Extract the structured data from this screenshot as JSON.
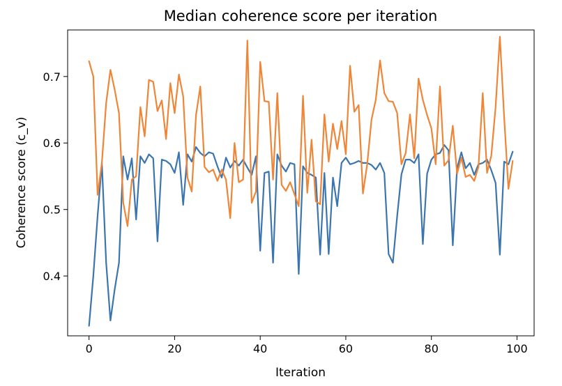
{
  "chart_data": {
    "type": "line",
    "title": "Median coherence score per iteration",
    "xlabel": "Iteration",
    "ylabel": "Coherence score (c_v)",
    "xlim": [
      -5,
      104
    ],
    "ylim": [
      0.31,
      0.77
    ],
    "xticks": [
      0,
      20,
      40,
      60,
      80,
      100
    ],
    "xtick_labels": [
      "0",
      "20",
      "40",
      "60",
      "80",
      "100"
    ],
    "yticks": [
      0.4,
      0.5,
      0.6,
      0.7
    ],
    "ytick_labels": [
      "0.4",
      "0.5",
      "0.6",
      "0.7"
    ],
    "grid": false,
    "legend": false,
    "x": [
      0,
      1,
      2,
      3,
      4,
      5,
      6,
      7,
      8,
      9,
      10,
      11,
      12,
      13,
      14,
      15,
      16,
      17,
      18,
      19,
      20,
      21,
      22,
      23,
      24,
      25,
      26,
      27,
      28,
      29,
      30,
      31,
      32,
      33,
      34,
      35,
      36,
      37,
      38,
      39,
      40,
      41,
      42,
      43,
      44,
      45,
      46,
      47,
      48,
      49,
      50,
      51,
      52,
      53,
      54,
      55,
      56,
      57,
      58,
      59,
      60,
      61,
      62,
      63,
      64,
      65,
      66,
      67,
      68,
      69,
      70,
      71,
      72,
      73,
      74,
      75,
      76,
      77,
      78,
      79,
      80,
      81,
      82,
      83,
      84,
      85,
      86,
      87,
      88,
      89,
      90,
      91,
      92,
      93,
      94,
      95,
      96,
      97,
      98,
      99
    ],
    "series": [
      {
        "color": "#3b75af",
        "values": [
          0.325,
          0.4,
          0.49,
          0.57,
          0.42,
          0.333,
          0.38,
          0.42,
          0.58,
          0.545,
          0.577,
          0.485,
          0.58,
          0.57,
          0.583,
          0.577,
          0.452,
          0.575,
          0.573,
          0.568,
          0.555,
          0.586,
          0.507,
          0.583,
          0.572,
          0.594,
          0.585,
          0.58,
          0.586,
          0.584,
          0.565,
          0.548,
          0.578,
          0.563,
          0.573,
          0.566,
          0.575,
          0.563,
          0.552,
          0.58,
          0.438,
          0.555,
          0.557,
          0.42,
          0.583,
          0.566,
          0.557,
          0.57,
          0.568,
          0.403,
          0.565,
          0.555,
          0.552,
          0.548,
          0.432,
          0.555,
          0.433,
          0.548,
          0.505,
          0.57,
          0.578,
          0.568,
          0.57,
          0.573,
          0.57,
          0.57,
          0.567,
          0.56,
          0.57,
          0.555,
          0.433,
          0.42,
          0.49,
          0.553,
          0.575,
          0.575,
          0.57,
          0.583,
          0.448,
          0.554,
          0.575,
          0.583,
          0.585,
          0.597,
          0.589,
          0.446,
          0.562,
          0.586,
          0.562,
          0.57,
          0.552,
          0.568,
          0.57,
          0.575,
          0.559,
          0.54,
          0.432,
          0.572,
          0.568,
          0.587
        ]
      },
      {
        "color": "#ef8536",
        "values": [
          0.723,
          0.7,
          0.522,
          0.57,
          0.66,
          0.71,
          0.68,
          0.645,
          0.51,
          0.475,
          0.545,
          0.55,
          0.654,
          0.61,
          0.695,
          0.692,
          0.648,
          0.664,
          0.606,
          0.69,
          0.645,
          0.703,
          0.67,
          0.548,
          0.527,
          0.642,
          0.685,
          0.564,
          0.556,
          0.56,
          0.543,
          0.56,
          0.545,
          0.487,
          0.6,
          0.541,
          0.545,
          0.754,
          0.51,
          0.527,
          0.722,
          0.663,
          0.662,
          0.545,
          0.675,
          0.537,
          0.528,
          0.541,
          0.523,
          0.505,
          0.671,
          0.525,
          0.605,
          0.512,
          0.508,
          0.643,
          0.572,
          0.629,
          0.591,
          0.633,
          0.583,
          0.716,
          0.647,
          0.657,
          0.524,
          0.568,
          0.635,
          0.665,
          0.724,
          0.675,
          0.663,
          0.662,
          0.645,
          0.568,
          0.585,
          0.643,
          0.577,
          0.697,
          0.665,
          0.642,
          0.622,
          0.568,
          0.685,
          0.566,
          0.574,
          0.626,
          0.554,
          0.578,
          0.549,
          0.552,
          0.543,
          0.564,
          0.675,
          0.555,
          0.581,
          0.654,
          0.76,
          0.639,
          0.531,
          0.573
        ]
      }
    ]
  }
}
